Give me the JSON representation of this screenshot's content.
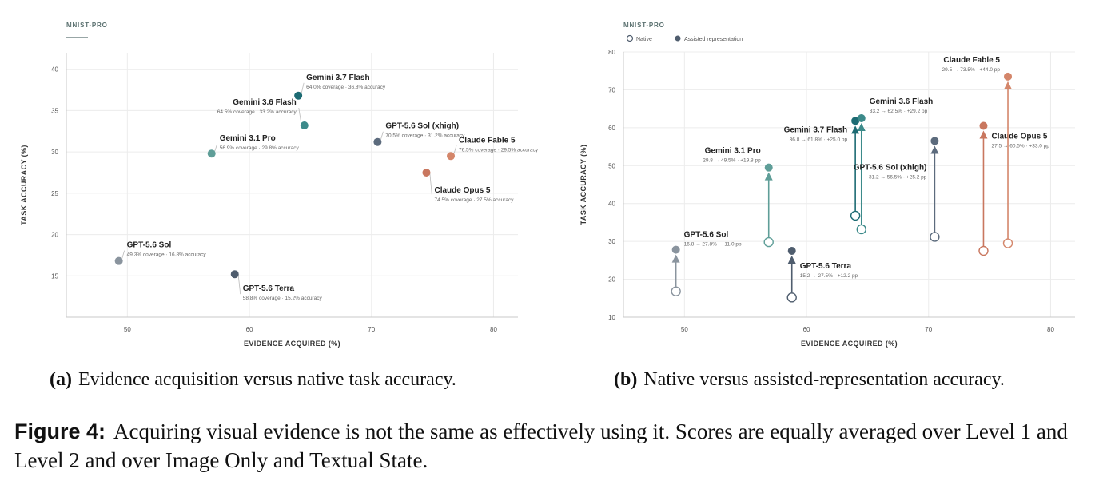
{
  "subcaptions": {
    "a_tag": "(a)",
    "a_text": "Evidence acquisition versus native task accuracy.",
    "b_tag": "(b)",
    "b_text": "Native versus assisted-representation accuracy."
  },
  "figure_caption": {
    "label": "Figure 4:",
    "text": "Acquiring visual evidence is not the same as effectively using it. Scores are equally averaged over Level 1 and Level 2 and over Image Only and Textual State."
  },
  "chart_data": [
    {
      "type": "scatter",
      "tag": "MNIST-PRO",
      "xlabel": "EVIDENCE ACQUIRED (%)",
      "ylabel": "TASK ACCURACY (%)",
      "xlim": [
        45,
        82
      ],
      "ylim": [
        10,
        42
      ],
      "xticks": [
        50,
        60,
        70,
        80
      ],
      "yticks": [
        15,
        20,
        25,
        30,
        35,
        40
      ],
      "grid": true,
      "points": [
        {
          "name": "Gemini 3.7 Flash",
          "x": 64.0,
          "y": 36.8,
          "color": "#1d6b73",
          "sub": "64.0% coverage · 36.8% accuracy"
        },
        {
          "name": "Gemini 3.6 Flash",
          "x": 64.5,
          "y": 33.2,
          "color": "#3c8a8a",
          "sub": "64.5% coverage · 33.2% accuracy"
        },
        {
          "name": "Gemini 3.1 Pro",
          "x": 56.9,
          "y": 29.8,
          "color": "#5f9e98",
          "sub": "56.9% coverage · 29.8% accuracy"
        },
        {
          "name": "GPT-5.6 Sol (xhigh)",
          "x": 70.5,
          "y": 31.2,
          "color": "#5c6b7d",
          "sub": "70.5% coverage · 31.2% accuracy"
        },
        {
          "name": "Claude Fable 5",
          "x": 76.5,
          "y": 29.5,
          "color": "#d4866a",
          "sub": "76.5% coverage · 29.5% accuracy"
        },
        {
          "name": "Claude Opus 5",
          "x": 74.5,
          "y": 27.5,
          "color": "#c9775f",
          "sub": "74.5% coverage · 27.5% accuracy"
        },
        {
          "name": "GPT-5.6 Sol",
          "x": 49.3,
          "y": 16.8,
          "color": "#8a949e",
          "sub": "49.3% coverage · 16.8% accuracy"
        },
        {
          "name": "GPT-5.6 Terra",
          "x": 58.8,
          "y": 15.2,
          "color": "#4f5d6e",
          "sub": "58.8% coverage · 15.2% accuracy"
        }
      ]
    },
    {
      "type": "scatter",
      "tag": "MNIST-PRO",
      "legend": [
        "Native",
        "Assisted representation"
      ],
      "legend_position": "top-left",
      "xlabel": "EVIDENCE ACQUIRED (%)",
      "ylabel": "TASK ACCURACY (%)",
      "xlim": [
        45,
        82
      ],
      "ylim": [
        10,
        80
      ],
      "xticks": [
        50,
        60,
        70,
        80
      ],
      "yticks": [
        10,
        20,
        30,
        40,
        50,
        60,
        70,
        80
      ],
      "grid": true,
      "points": [
        {
          "name": "GPT-5.6 Sol",
          "x": 49.3,
          "native": 16.8,
          "assisted": 27.8,
          "color": "#8a949e",
          "sub": "16.8 → 27.8% · +11.0 pp"
        },
        {
          "name": "Gemini 3.1 Pro",
          "x": 56.9,
          "native": 29.8,
          "assisted": 49.5,
          "color": "#5f9e98",
          "sub": "29.8 → 49.5% · +19.8 pp"
        },
        {
          "name": "GPT-5.6 Terra",
          "x": 58.8,
          "native": 15.2,
          "assisted": 27.5,
          "color": "#4f5d6e",
          "sub": "15.2 → 27.5% · +12.2 pp"
        },
        {
          "name": "Gemini 3.7 Flash",
          "x": 64.0,
          "native": 36.8,
          "assisted": 61.8,
          "color": "#1d6b73",
          "sub": "36.8 → 61.8% · +25.0 pp"
        },
        {
          "name": "Gemini 3.6 Flash",
          "x": 64.5,
          "native": 33.2,
          "assisted": 62.5,
          "color": "#3c8a8a",
          "sub": "33.2 → 62.5% · +29.2 pp"
        },
        {
          "name": "GPT-5.6 Sol (xhigh)",
          "x": 70.5,
          "native": 31.2,
          "assisted": 56.5,
          "color": "#5c6b7d",
          "sub": "31.2 → 56.5% · +25.2 pp"
        },
        {
          "name": "Claude Opus 5",
          "x": 74.5,
          "native": 27.5,
          "assisted": 60.5,
          "color": "#c9775f",
          "sub": "27.5 → 60.5% · +33.0 pp"
        },
        {
          "name": "Claude Fable 5",
          "x": 76.5,
          "native": 29.5,
          "assisted": 73.5,
          "color": "#d4866a",
          "sub": "29.5 → 73.5% · +44.0 pp"
        }
      ]
    }
  ]
}
